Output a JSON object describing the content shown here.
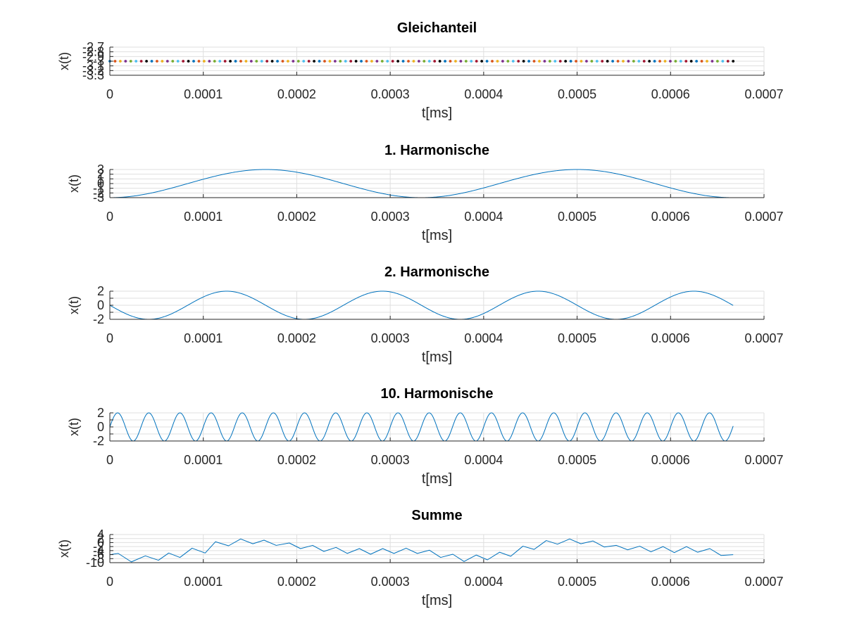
{
  "chart_data": [
    {
      "type": "line",
      "title": "Gleichanteil",
      "xlabel": "t[ms]",
      "ylabel": "x(t)",
      "xlim": [
        0,
        0.0007
      ],
      "ylim": [
        -3.3,
        -2.7
      ],
      "xticks": [
        0,
        0.0001,
        0.0002,
        0.0003,
        0.0004,
        0.0005,
        0.0006,
        0.0007
      ],
      "xtick_labels": [
        "0",
        "0.0001",
        "0.0002",
        "0.0003",
        "0.0004",
        "0.0005",
        "0.0006",
        "0.0007"
      ],
      "yticks": [
        -3.3,
        -3.2,
        -3.1,
        -3.0,
        -2.9,
        -2.8,
        -2.7
      ],
      "ytick_labels": [
        "-3.3",
        "-3.2",
        "-3.1",
        "-3",
        "-2.9",
        "-2.8",
        "-2.7"
      ],
      "grid": true,
      "series": [
        {
          "kind": "constant",
          "value": -3,
          "t_end": 0.000667,
          "marker_count": 120,
          "marker_colors": [
            "#0072BD",
            "#D95319",
            "#EDB120",
            "#7E2F8E",
            "#77AC30",
            "#4DBEEE",
            "#A2142F",
            "#000000"
          ]
        }
      ]
    },
    {
      "type": "line",
      "title": "1. Harmonische",
      "xlabel": "t[ms]",
      "ylabel": "x(t)",
      "xlim": [
        0,
        0.0007
      ],
      "ylim": [
        -3,
        3
      ],
      "xticks": [
        0,
        0.0001,
        0.0002,
        0.0003,
        0.0004,
        0.0005,
        0.0006,
        0.0007
      ],
      "xtick_labels": [
        "0",
        "0.0001",
        "0.0002",
        "0.0003",
        "0.0004",
        "0.0005",
        "0.0006",
        "0.0007"
      ],
      "yticks": [
        -3,
        -2,
        -1,
        0,
        1,
        2,
        3
      ],
      "ytick_labels": [
        "-3",
        "-2",
        "-1",
        "0",
        "1",
        "2",
        "3"
      ],
      "grid": true,
      "series": [
        {
          "kind": "cosine",
          "amplitude": -3,
          "frequency": 3000,
          "phase": 0,
          "t_end": 0.000667,
          "color": "#0072BD"
        }
      ]
    },
    {
      "type": "line",
      "title": "2. Harmonische",
      "xlabel": "t[ms]",
      "ylabel": "x(t)",
      "xlim": [
        0,
        0.0007
      ],
      "ylim": [
        -2,
        2
      ],
      "xticks": [
        0,
        0.0001,
        0.0002,
        0.0003,
        0.0004,
        0.0005,
        0.0006,
        0.0007
      ],
      "xtick_labels": [
        "0",
        "0.0001",
        "0.0002",
        "0.0003",
        "0.0004",
        "0.0005",
        "0.0006",
        "0.0007"
      ],
      "yticks": [
        -2,
        -1,
        0,
        1,
        2
      ],
      "ytick_labels": [
        "-2",
        "",
        "0",
        "",
        "2"
      ],
      "grid": true,
      "series": [
        {
          "kind": "sine",
          "amplitude": -2,
          "frequency": 6000,
          "phase": 0,
          "t_end": 0.000667,
          "color": "#0072BD"
        }
      ]
    },
    {
      "type": "line",
      "title": "10. Harmonische",
      "xlabel": "t[ms]",
      "ylabel": "x(t)",
      "xlim": [
        0,
        0.0007
      ],
      "ylim": [
        -2,
        2
      ],
      "xticks": [
        0,
        0.0001,
        0.0002,
        0.0003,
        0.0004,
        0.0005,
        0.0006,
        0.0007
      ],
      "xtick_labels": [
        "0",
        "0.0001",
        "0.0002",
        "0.0003",
        "0.0004",
        "0.0005",
        "0.0006",
        "0.0007"
      ],
      "yticks": [
        -2,
        -1,
        0,
        1,
        2
      ],
      "ytick_labels": [
        "-2",
        "",
        "0",
        "",
        "2"
      ],
      "grid": true,
      "series": [
        {
          "kind": "sine",
          "amplitude": 2,
          "frequency": 30000,
          "phase": 0,
          "t_end": 0.000667,
          "color": "#0072BD"
        }
      ]
    },
    {
      "type": "line",
      "title": "Summe",
      "xlabel": "t[ms]",
      "ylabel": "x(t)",
      "xlim": [
        0,
        0.0007
      ],
      "ylim": [
        -10,
        4
      ],
      "xticks": [
        0,
        0.0001,
        0.0002,
        0.0003,
        0.0004,
        0.0005,
        0.0006,
        0.0007
      ],
      "xtick_labels": [
        "0",
        "0.0001",
        "0.0002",
        "0.0003",
        "0.0004",
        "0.0005",
        "0.0006",
        "0.0007"
      ],
      "yticks": [
        -10,
        -8,
        -6,
        -4,
        -2,
        0,
        2,
        4
      ],
      "ytick_labels": [
        "-10",
        "-8",
        "-6",
        "-4",
        "-2",
        "0",
        "2",
        "4"
      ],
      "grid": true,
      "series": [
        {
          "kind": "points",
          "color": "#0072BD",
          "x": [
            0,
            9e-06,
            2.3e-05,
            3.8e-05,
            5.2e-05,
            6.3e-05,
            7.5e-05,
            8.8e-05,
            0.000102,
            0.000113,
            0.000127,
            0.00014,
            0.000153,
            0.000165,
            0.000178,
            0.000192,
            0.000204,
            0.000217,
            0.000229,
            0.000242,
            0.000254,
            0.000267,
            0.000279,
            0.000292,
            0.000304,
            0.000317,
            0.000329,
            0.000342,
            0.000354,
            0.000367,
            0.000379,
            0.000392,
            0.000404,
            0.000417,
            0.000429,
            0.000442,
            0.000454,
            0.000467,
            0.000479,
            0.000492,
            0.000504,
            0.000517,
            0.000529,
            0.000542,
            0.000554,
            0.000567,
            0.000579,
            0.000592,
            0.000604,
            0.000617,
            0.000629,
            0.000642,
            0.000654,
            0.000667
          ],
          "y": [
            -6.0,
            -5.4,
            -9.6,
            -6.6,
            -8.8,
            -5.2,
            -7.4,
            -2.8,
            -5.2,
            0.4,
            -1.6,
            1.8,
            -0.6,
            1.2,
            -1.4,
            -0.2,
            -3.0,
            -1.4,
            -4.4,
            -2.4,
            -5.4,
            -3.0,
            -5.8,
            -3.0,
            -5.4,
            -2.8,
            -5.4,
            -3.8,
            -7.4,
            -5.8,
            -9.4,
            -6.2,
            -8.6,
            -4.8,
            -6.8,
            -1.8,
            -3.4,
            1.0,
            -0.8,
            1.8,
            -0.6,
            0.8,
            -2.2,
            -1.4,
            -3.6,
            -1.8,
            -4.6,
            -2.0,
            -5.0,
            -2.0,
            -4.8,
            -3.0,
            -6.4,
            -6.0
          ]
        }
      ]
    }
  ]
}
